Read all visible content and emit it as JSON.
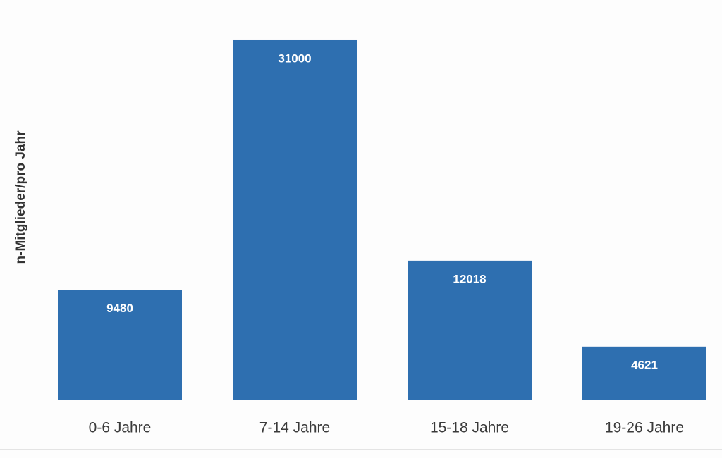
{
  "chart_data": {
    "type": "bar",
    "y_label": "n-Mitglieder/pro Jahr",
    "categories": [
      "0-6 Jahre",
      "7-14 Jahre",
      "15-18 Jahre",
      "19-26 Jahre"
    ],
    "values": [
      9480,
      31000,
      12018,
      4621
    ],
    "color": "#2e6fb0",
    "ylim": [
      0,
      32000
    ],
    "grid": false
  }
}
